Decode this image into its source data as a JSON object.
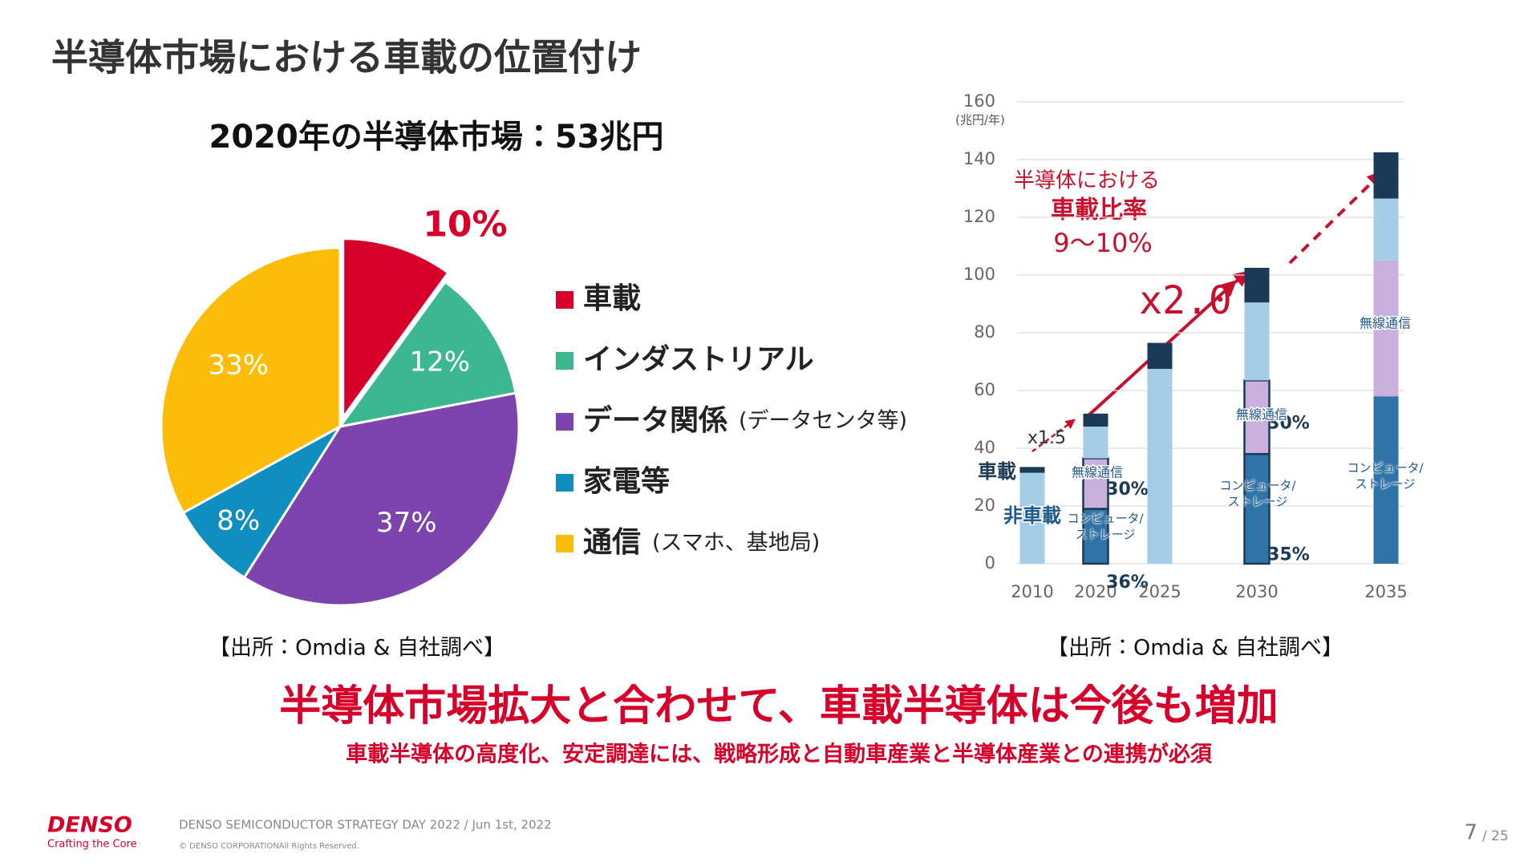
{
  "slide": {
    "title": "半導体市場における車載の位置付け",
    "headline": "半導体市場拡大と合わせて、車載半導体は今後も増加",
    "subline": "車載半導体の高度化、安定調達には、戦略形成と自動車産業と半導体産業との連携が必須",
    "logo": "DENSO",
    "tagline": "Crafting the Core",
    "event": "DENSO SEMICONDUCTOR STRATEGY DAY 2022 / Jun 1st, 2022",
    "copyright": "© DENSO CORPORATIONAll Rights Reserved.",
    "page": "7",
    "page_total": "/ 25"
  },
  "chart_data": [
    {
      "type": "pie",
      "title": "2020年の半導体市場：53兆円",
      "categories": [
        "車載",
        "インダストリアル",
        "データ関係",
        "家電等",
        "通信"
      ],
      "category_notes": [
        null,
        null,
        "(データセンタ等)",
        null,
        "(スマホ、基地局)"
      ],
      "values": [
        10,
        12,
        37,
        8,
        33
      ],
      "value_labels": [
        "10%",
        "12%",
        "37%",
        "8%",
        "33%"
      ],
      "colors": [
        "#d7002a",
        "#3bb88f",
        "#7e44ad",
        "#0e8fbf",
        "#fbbd08"
      ],
      "source": "【出所：Omdia & 自社調べ】"
    },
    {
      "type": "stacked-bar",
      "y_label": "(兆円/年)",
      "categories": [
        "2010",
        "2020",
        "2025",
        "2030",
        "2035"
      ],
      "series": [
        {
          "name": "コンピュータ/ストレージ",
          "color": "#2f74a8",
          "values": [
            null,
            19,
            null,
            38,
            58
          ],
          "shares": [
            null,
            36,
            null,
            35,
            null
          ],
          "share_labels": [
            null,
            "36%",
            null,
            "35%",
            null
          ]
        },
        {
          "name": "無線通信",
          "color": "#c9b0dd",
          "values": [
            null,
            17.5,
            null,
            25.5,
            47
          ],
          "shares": [
            null,
            30,
            null,
            30,
            null
          ],
          "share_labels": [
            null,
            "30%",
            null,
            "30%",
            null
          ]
        },
        {
          "name": "非車載",
          "color": "#a5cde8",
          "values": [
            31.5,
            11,
            67.5,
            27,
            21.5
          ]
        },
        {
          "name": "車載",
          "color": "#1b3a57",
          "values": [
            2,
            4.5,
            9,
            12,
            16
          ]
        }
      ],
      "ylim": [
        0,
        160
      ],
      "yticks": [
        0,
        20,
        40,
        60,
        80,
        100,
        120,
        140,
        160
      ],
      "grid": true,
      "annotations": {
        "ratio_title": "半導体における",
        "ratio_name": "車載比率",
        "ratio_value": "9～10%",
        "growth_2010_2020": "x1.5",
        "growth_2020_2030": "x2.0"
      },
      "source": "【出所：Omdia & 自社調べ】"
    }
  ]
}
